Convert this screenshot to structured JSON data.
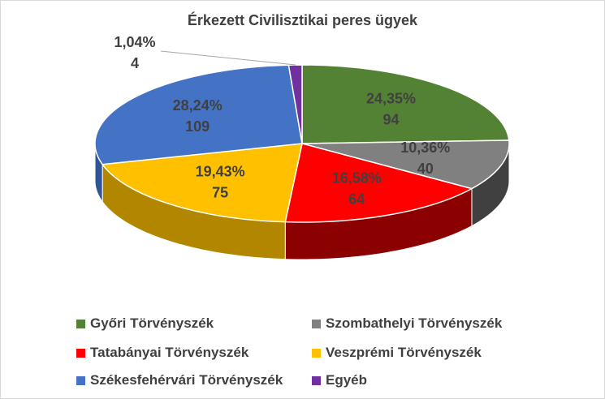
{
  "chart_data": {
    "type": "pie",
    "title": "Érkezett Civilisztikai peres ügyek",
    "slices": [
      {
        "label": "Győri Törvényszék",
        "value": 94,
        "percent_label": "24,35%",
        "color": "#548235",
        "side": "#375623"
      },
      {
        "label": "Szombathelyi Törvényszék",
        "value": 40,
        "percent_label": "10,36%",
        "color": "#808080",
        "side": "#404040"
      },
      {
        "label": "Tatabányai Törvényszék",
        "value": 64,
        "percent_label": "16,58%",
        "color": "#ff0000",
        "side": "#8b0000"
      },
      {
        "label": "Veszprémi Törvényszék",
        "value": 75,
        "percent_label": "19,43%",
        "color": "#ffc000",
        "side": "#b38600"
      },
      {
        "label": "Székesfehérvári Törvényszék",
        "value": 109,
        "percent_label": "28,24%",
        "color": "#4472c4",
        "side": "#2f5597"
      },
      {
        "label": "Egyéb",
        "value": 4,
        "percent_label": "1,04%",
        "color": "#7030a0",
        "side": "#4b1f6b"
      }
    ],
    "legend_position": "bottom"
  }
}
